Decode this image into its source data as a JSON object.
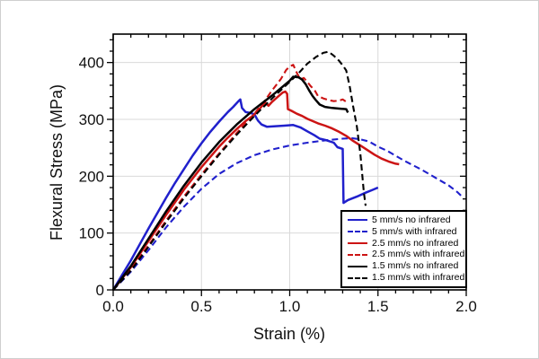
{
  "figure": {
    "background": "#ffffff",
    "frame_color": "#000000",
    "grid_color": "#d9d9d9"
  },
  "chart_data": {
    "type": "line",
    "title": "",
    "xlabel": "Strain (%)",
    "ylabel": "Flexural Stress (MPa)",
    "xlim": [
      0,
      2.0
    ],
    "ylim": [
      0,
      450
    ],
    "grid": {
      "show": true,
      "color": "#d9d9d9",
      "major_x": [
        0.5,
        1.0,
        1.5
      ],
      "major_y": [
        100,
        200,
        300,
        400
      ]
    },
    "xticks": {
      "values": [
        0,
        0.5,
        1.0,
        1.5,
        2.0
      ],
      "labels": [
        "0.0",
        "0.5",
        "1.0",
        "1.5",
        "2.0"
      ],
      "minor_step": 0.1
    },
    "yticks": {
      "values": [
        0,
        100,
        200,
        300,
        400
      ],
      "labels": [
        "0",
        "100",
        "200",
        "300",
        "400"
      ],
      "minor_step": 20
    },
    "legend": {
      "position": "bottom-right",
      "border_color": "#000000",
      "background": "#ffffff"
    },
    "series": [
      {
        "id": "5mms-no-infrared",
        "name": "5 mm/s no infrared",
        "color": "#2020cc",
        "style": "solid",
        "points": [
          [
            0,
            0
          ],
          [
            0.05,
            26
          ],
          [
            0.1,
            52
          ],
          [
            0.15,
            80
          ],
          [
            0.2,
            108
          ],
          [
            0.25,
            135
          ],
          [
            0.3,
            162
          ],
          [
            0.35,
            188
          ],
          [
            0.4,
            212
          ],
          [
            0.45,
            236
          ],
          [
            0.5,
            258
          ],
          [
            0.55,
            278
          ],
          [
            0.6,
            296
          ],
          [
            0.65,
            313
          ],
          [
            0.68,
            322
          ],
          [
            0.71,
            332
          ],
          [
            0.72,
            335
          ],
          [
            0.73,
            320
          ],
          [
            0.75,
            313
          ],
          [
            0.78,
            311
          ],
          [
            0.8,
            309
          ],
          [
            0.82,
            298
          ],
          [
            0.84,
            291
          ],
          [
            0.87,
            287
          ],
          [
            0.92,
            288
          ],
          [
            0.97,
            289
          ],
          [
            1.02,
            290
          ],
          [
            1.06,
            286
          ],
          [
            1.1,
            279
          ],
          [
            1.14,
            272
          ],
          [
            1.17,
            266
          ],
          [
            1.21,
            263
          ],
          [
            1.25,
            259
          ],
          [
            1.27,
            251
          ],
          [
            1.3,
            248
          ],
          [
            1.305,
            153
          ],
          [
            1.33,
            158
          ],
          [
            1.38,
            164
          ],
          [
            1.43,
            171
          ],
          [
            1.47,
            176
          ],
          [
            1.5,
            180
          ]
        ]
      },
      {
        "id": "5mms-with-infrared",
        "name": "5 mm/s with infrared",
        "color": "#2020cc",
        "style": "dashed",
        "points": [
          [
            0,
            0
          ],
          [
            0.1,
            32
          ],
          [
            0.2,
            70
          ],
          [
            0.3,
            110
          ],
          [
            0.4,
            146
          ],
          [
            0.5,
            178
          ],
          [
            0.6,
            204
          ],
          [
            0.7,
            223
          ],
          [
            0.8,
            237
          ],
          [
            0.9,
            247
          ],
          [
            1.0,
            254
          ],
          [
            1.1,
            259
          ],
          [
            1.2,
            263
          ],
          [
            1.3,
            266
          ],
          [
            1.35,
            267
          ],
          [
            1.4,
            265
          ],
          [
            1.45,
            261
          ],
          [
            1.5,
            252
          ],
          [
            1.55,
            245
          ],
          [
            1.6,
            236
          ],
          [
            1.65,
            227
          ],
          [
            1.7,
            219
          ],
          [
            1.75,
            211
          ],
          [
            1.8,
            202
          ],
          [
            1.85,
            193
          ],
          [
            1.9,
            184
          ],
          [
            1.95,
            172
          ],
          [
            1.98,
            163
          ]
        ]
      },
      {
        "id": "2-5mms-no-infrared",
        "name": "2.5 mm/s no infrared",
        "color": "#cc1414",
        "style": "solid",
        "points": [
          [
            0,
            0
          ],
          [
            0.1,
            40
          ],
          [
            0.2,
            86
          ],
          [
            0.3,
            132
          ],
          [
            0.4,
            176
          ],
          [
            0.5,
            216
          ],
          [
            0.6,
            252
          ],
          [
            0.65,
            268
          ],
          [
            0.7,
            283
          ],
          [
            0.75,
            297
          ],
          [
            0.79,
            306
          ],
          [
            0.82,
            315
          ],
          [
            0.85,
            326
          ],
          [
            0.86,
            330
          ],
          [
            0.88,
            324
          ],
          [
            0.9,
            331
          ],
          [
            0.93,
            339
          ],
          [
            0.96,
            347
          ],
          [
            0.975,
            349
          ],
          [
            0.985,
            345
          ],
          [
            0.99,
            318
          ],
          [
            1.01,
            315
          ],
          [
            1.04,
            310
          ],
          [
            1.07,
            306
          ],
          [
            1.1,
            301
          ],
          [
            1.13,
            297
          ],
          [
            1.16,
            293
          ],
          [
            1.2,
            289
          ],
          [
            1.24,
            284
          ],
          [
            1.28,
            278
          ],
          [
            1.32,
            271
          ],
          [
            1.36,
            262
          ],
          [
            1.4,
            254
          ],
          [
            1.44,
            246
          ],
          [
            1.48,
            238
          ],
          [
            1.52,
            231
          ],
          [
            1.56,
            226
          ],
          [
            1.6,
            222
          ],
          [
            1.62,
            221
          ]
        ]
      },
      {
        "id": "2-5mms-with-infrared",
        "name": "2.5 mm/s with infrared",
        "color": "#cc1414",
        "style": "dashed",
        "points": [
          [
            0,
            0
          ],
          [
            0.1,
            36
          ],
          [
            0.2,
            78
          ],
          [
            0.3,
            122
          ],
          [
            0.4,
            164
          ],
          [
            0.5,
            203
          ],
          [
            0.6,
            240
          ],
          [
            0.7,
            276
          ],
          [
            0.8,
            310
          ],
          [
            0.85,
            329
          ],
          [
            0.9,
            351
          ],
          [
            0.95,
            371
          ],
          [
            0.98,
            387
          ],
          [
            1.0,
            393
          ],
          [
            1.02,
            396
          ],
          [
            1.04,
            382
          ],
          [
            1.06,
            370
          ],
          [
            1.08,
            373
          ],
          [
            1.1,
            366
          ],
          [
            1.12,
            358
          ],
          [
            1.14,
            352
          ],
          [
            1.16,
            341
          ],
          [
            1.19,
            337
          ],
          [
            1.22,
            334
          ],
          [
            1.25,
            332
          ],
          [
            1.28,
            333
          ],
          [
            1.3,
            335
          ],
          [
            1.32,
            331
          ],
          [
            1.33,
            329
          ]
        ]
      },
      {
        "id": "1-5mms-no-infrared",
        "name": "1.5 mm/s no infrared",
        "color": "#000000",
        "style": "solid",
        "points": [
          [
            0,
            0
          ],
          [
            0.1,
            42
          ],
          [
            0.2,
            90
          ],
          [
            0.3,
            138
          ],
          [
            0.4,
            183
          ],
          [
            0.5,
            224
          ],
          [
            0.6,
            260
          ],
          [
            0.7,
            291
          ],
          [
            0.8,
            318
          ],
          [
            0.85,
            330
          ],
          [
            0.9,
            342
          ],
          [
            0.95,
            355
          ],
          [
            1.0,
            368
          ],
          [
            1.02,
            375
          ],
          [
            1.05,
            374
          ],
          [
            1.07,
            370
          ],
          [
            1.09,
            362
          ],
          [
            1.11,
            351
          ],
          [
            1.13,
            341
          ],
          [
            1.15,
            333
          ],
          [
            1.17,
            326
          ],
          [
            1.2,
            322
          ],
          [
            1.24,
            320
          ],
          [
            1.28,
            319
          ],
          [
            1.32,
            318
          ],
          [
            1.33,
            312
          ]
        ]
      },
      {
        "id": "1-5mms-with-infrared",
        "name": "1.5 mm/s with infrared",
        "color": "#000000",
        "style": "dashed",
        "points": [
          [
            0,
            0
          ],
          [
            0.1,
            34
          ],
          [
            0.2,
            76
          ],
          [
            0.3,
            119
          ],
          [
            0.4,
            161
          ],
          [
            0.5,
            200
          ],
          [
            0.6,
            238
          ],
          [
            0.7,
            273
          ],
          [
            0.8,
            306
          ],
          [
            0.9,
            337
          ],
          [
            1.0,
            366
          ],
          [
            1.05,
            381
          ],
          [
            1.1,
            398
          ],
          [
            1.15,
            410
          ],
          [
            1.19,
            417
          ],
          [
            1.22,
            419
          ],
          [
            1.25,
            412
          ],
          [
            1.28,
            403
          ],
          [
            1.3,
            395
          ],
          [
            1.32,
            386
          ],
          [
            1.34,
            358
          ],
          [
            1.36,
            322
          ],
          [
            1.38,
            288
          ],
          [
            1.4,
            240
          ],
          [
            1.41,
            205
          ],
          [
            1.42,
            172
          ],
          [
            1.43,
            148
          ]
        ]
      }
    ]
  }
}
